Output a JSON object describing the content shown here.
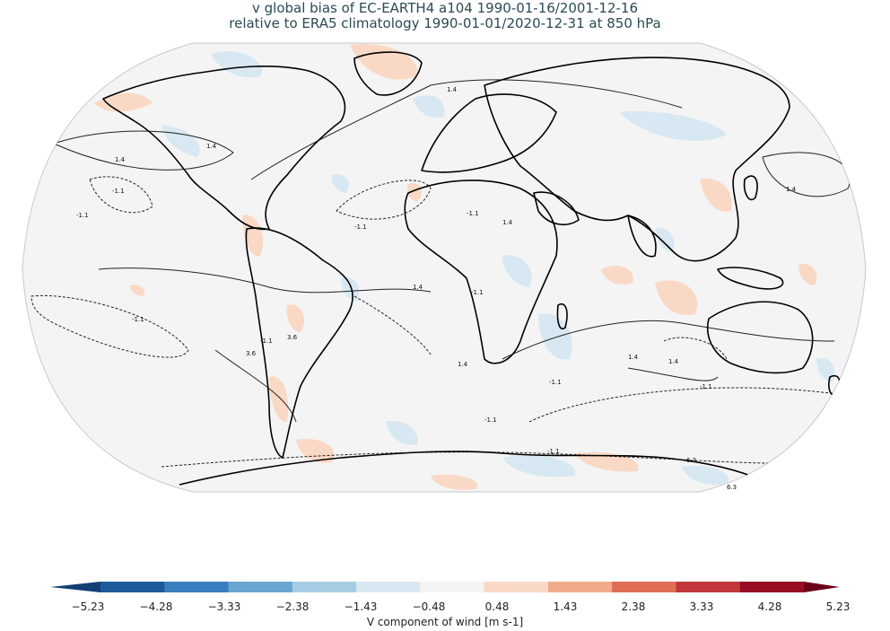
{
  "title": {
    "line1": "v global bias of EC-EARTH4 a104 1990-01-16/2001-12-16",
    "line2": "relative to ERA5 climatology 1990-01-01/2020-12-31 at 850 hPa"
  },
  "colorbar": {
    "label": "V component of wind [m s-1]",
    "ticks": [
      "−5.23",
      "−4.28",
      "−3.33",
      "−2.38",
      "−1.43",
      "−0.48",
      "0.48",
      "1.43",
      "2.38",
      "3.33",
      "4.28",
      "5.23"
    ],
    "colors": [
      "#1c5a9a",
      "#3a7fbd",
      "#6aa6d2",
      "#a6cde3",
      "#d7e8f2",
      "#f4f4f4",
      "#f9d9c6",
      "#f2ab8a",
      "#df6e55",
      "#c2383a",
      "#980d23"
    ],
    "under_color": "#123e74",
    "over_color": "#6b0019",
    "extend": "both"
  },
  "contour_labels": [
    "1.4",
    "-1.1",
    "3.6",
    "6.3"
  ],
  "map": {
    "projection": "Robinson",
    "ocean_fill": "#f4f4f4",
    "coastline_color": "#000000"
  }
}
